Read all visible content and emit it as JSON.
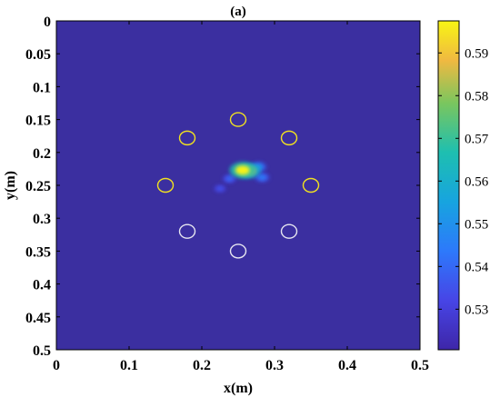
{
  "chart_data": {
    "type": "heatmap",
    "title": "(a)",
    "xlabel": "x(m)",
    "ylabel": "y(m)",
    "xlim": [
      0,
      0.5
    ],
    "ylim": [
      0,
      0.5
    ],
    "y_reversed": true,
    "x_ticks": [
      "0",
      "0.1",
      "0.2",
      "0.3",
      "0.4",
      "0.5"
    ],
    "y_ticks": [
      "0",
      "0.05",
      "0.1",
      "0.15",
      "0.2",
      "0.25",
      "0.3",
      "0.35",
      "0.4",
      "0.45",
      "0.5"
    ],
    "colormap": "parula",
    "background_color": "#3b2fa0",
    "colorbar": {
      "range": [
        0.5205,
        0.5975
      ],
      "ticks": [
        "0.53",
        "0.54",
        "0.55",
        "0.56",
        "0.57",
        "0.58",
        "0.59"
      ]
    },
    "hotspots": [
      {
        "x": 0.256,
        "y": 0.227,
        "value": 0.597
      },
      {
        "x": 0.265,
        "y": 0.228,
        "value": 0.585
      },
      {
        "x": 0.278,
        "y": 0.222,
        "value": 0.55
      },
      {
        "x": 0.283,
        "y": 0.238,
        "value": 0.545
      },
      {
        "x": 0.238,
        "y": 0.24,
        "value": 0.54
      },
      {
        "x": 0.225,
        "y": 0.255,
        "value": 0.535
      }
    ],
    "markers": [
      {
        "x": 0.25,
        "y": 0.15,
        "color": "#f0e020"
      },
      {
        "x": 0.18,
        "y": 0.178,
        "color": "#f0e020"
      },
      {
        "x": 0.32,
        "y": 0.178,
        "color": "#f0e020"
      },
      {
        "x": 0.15,
        "y": 0.25,
        "color": "#f0e020"
      },
      {
        "x": 0.35,
        "y": 0.25,
        "color": "#f0e020"
      },
      {
        "x": 0.18,
        "y": 0.32,
        "color": "#e6e6f0"
      },
      {
        "x": 0.32,
        "y": 0.32,
        "color": "#e6e6f0"
      },
      {
        "x": 0.25,
        "y": 0.35,
        "color": "#e6e6f0"
      }
    ]
  }
}
